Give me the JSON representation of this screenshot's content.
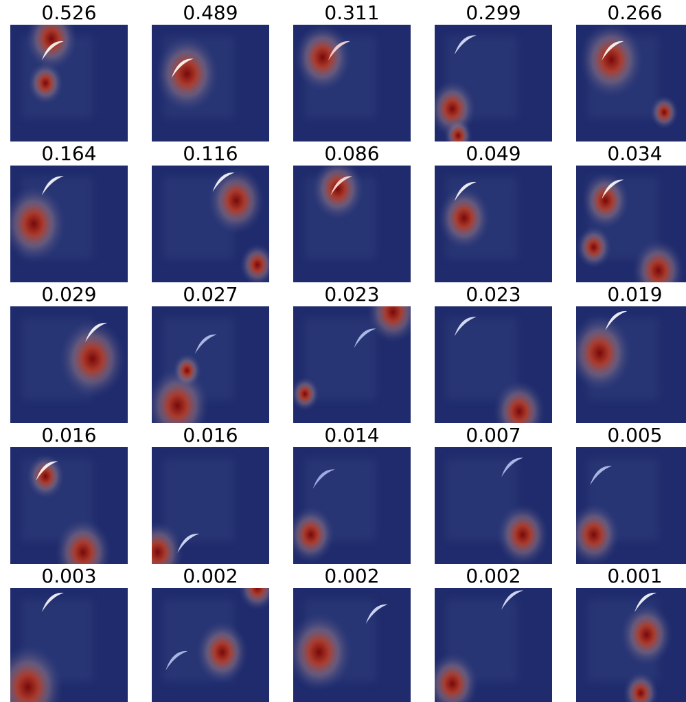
{
  "panels": [
    {
      "score": "0.526"
    },
    {
      "score": "0.489"
    },
    {
      "score": "0.311"
    },
    {
      "score": "0.299"
    },
    {
      "score": "0.266"
    },
    {
      "score": "0.164"
    },
    {
      "score": "0.116"
    },
    {
      "score": "0.086"
    },
    {
      "score": "0.049"
    },
    {
      "score": "0.034"
    },
    {
      "score": "0.029"
    },
    {
      "score": "0.027"
    },
    {
      "score": "0.023"
    },
    {
      "score": "0.023"
    },
    {
      "score": "0.019"
    },
    {
      "score": "0.016"
    },
    {
      "score": "0.016"
    },
    {
      "score": "0.014"
    },
    {
      "score": "0.007"
    },
    {
      "score": "0.005"
    },
    {
      "score": "0.003"
    },
    {
      "score": "0.002"
    },
    {
      "score": "0.002"
    },
    {
      "score": "0.002"
    },
    {
      "score": "0.001"
    }
  ]
}
